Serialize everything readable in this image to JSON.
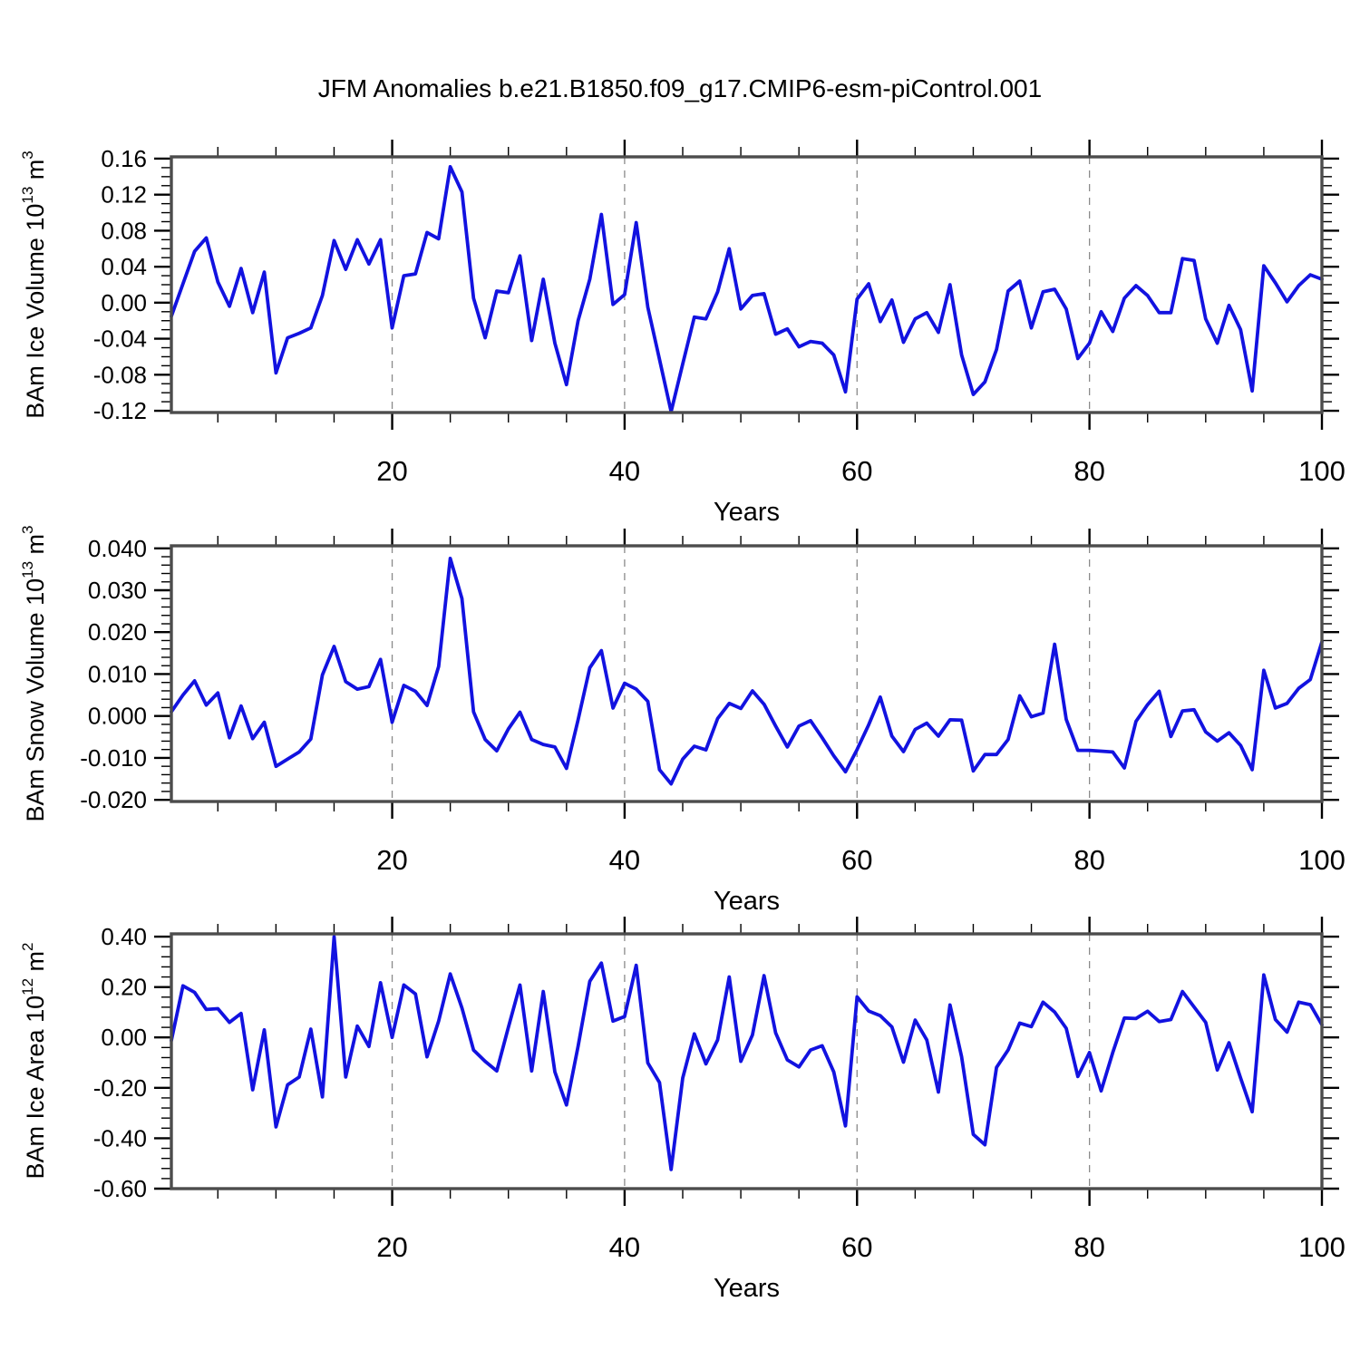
{
  "title": "JFM Anomalies b.e21.B1850.f09_g17.CMIP6-esm-piControl.001",
  "line_color": "#1212E0",
  "chart_data": [
    {
      "type": "line",
      "name": "BAm Ice Volume anomaly",
      "ylabel": {
        "prefix": "BAm Ice Volume 10",
        "exp": "13",
        "unit": " m",
        "unit_exp": "3"
      },
      "xlabel": "Years",
      "x": {
        "start": 1,
        "end": 100,
        "step": 1,
        "minor_tick_step": 5
      },
      "xticks": [
        20,
        40,
        60,
        80,
        100
      ],
      "xtick_labels": [
        "20",
        "40",
        "60",
        "80",
        "100"
      ],
      "grid_x": [
        20,
        40,
        60,
        80
      ],
      "ylim": [
        -0.122,
        0.162
      ],
      "yticks": [
        0.16,
        0.12,
        0.08,
        0.04,
        0.0,
        -0.04,
        -0.08,
        -0.12
      ],
      "ytick_labels": [
        "0.16",
        "0.12",
        "0.08",
        "0.04",
        "0.00",
        "-0.04",
        "-0.08",
        "-0.12"
      ],
      "y_minor_step": 0.01,
      "values": [
        -0.015,
        0.021,
        0.057,
        0.072,
        0.023,
        -0.004,
        0.038,
        -0.011,
        0.034,
        -0.078,
        -0.039,
        -0.034,
        -0.028,
        0.008,
        0.069,
        0.037,
        0.07,
        0.043,
        0.07,
        -0.028,
        0.03,
        0.032,
        0.078,
        0.071,
        0.151,
        0.123,
        0.005,
        -0.039,
        0.013,
        0.011,
        0.052,
        -0.042,
        0.026,
        -0.045,
        -0.091,
        -0.02,
        0.026,
        0.098,
        -0.002,
        0.009,
        0.089,
        -0.005,
        -0.063,
        -0.121,
        -0.068,
        -0.016,
        -0.018,
        0.012,
        0.06,
        -0.007,
        0.008,
        0.01,
        -0.035,
        -0.029,
        -0.049,
        -0.043,
        -0.045,
        -0.058,
        -0.099,
        0.004,
        0.021,
        -0.021,
        0.003,
        -0.044,
        -0.018,
        -0.011,
        -0.033,
        0.02,
        -0.058,
        -0.102,
        -0.088,
        -0.052,
        0.013,
        0.024,
        -0.028,
        0.012,
        0.015,
        -0.007,
        -0.062,
        -0.045,
        -0.01,
        -0.032,
        0.005,
        0.019,
        0.008,
        -0.011,
        -0.011,
        0.049,
        0.047,
        -0.018,
        -0.045,
        -0.003,
        -0.03,
        -0.098,
        0.041,
        0.022,
        0.001,
        0.019,
        0.031,
        0.026
      ]
    },
    {
      "type": "line",
      "name": "BAm Snow Volume anomaly",
      "ylabel": {
        "prefix": "BAm Snow Volume 10",
        "exp": "13",
        "unit": " m",
        "unit_exp": "3"
      },
      "xlabel": "Years",
      "x": {
        "start": 1,
        "end": 100,
        "step": 1,
        "minor_tick_step": 5
      },
      "xticks": [
        20,
        40,
        60,
        80,
        100
      ],
      "xtick_labels": [
        "20",
        "40",
        "60",
        "80",
        "100"
      ],
      "grid_x": [
        20,
        40,
        60,
        80
      ],
      "ylim": [
        -0.0204,
        0.0406
      ],
      "yticks": [
        0.04,
        0.03,
        0.02,
        0.01,
        0.0,
        -0.01,
        -0.02
      ],
      "ytick_labels": [
        "0.040",
        "0.030",
        "0.020",
        "0.010",
        "0.000",
        "-0.010",
        "-0.020"
      ],
      "y_minor_step": 0.002,
      "values": [
        0.001,
        0.005,
        0.0084,
        0.0026,
        0.0055,
        -0.0052,
        0.0024,
        -0.0054,
        -0.0015,
        -0.012,
        -0.0103,
        -0.0086,
        -0.0055,
        0.0098,
        0.0166,
        0.0082,
        0.0064,
        0.007,
        0.0135,
        -0.0015,
        0.0073,
        0.0059,
        0.0025,
        0.0118,
        0.0376,
        0.028,
        0.001,
        -0.0056,
        -0.0083,
        -0.0031,
        0.0009,
        -0.0056,
        -0.0068,
        -0.0074,
        -0.0125,
        -0.0009,
        0.0115,
        0.0156,
        0.0019,
        0.0078,
        0.0064,
        0.0035,
        -0.0128,
        -0.0162,
        -0.0103,
        -0.0072,
        -0.0081,
        -0.0006,
        0.003,
        0.0018,
        0.006,
        0.0028,
        -0.0024,
        -0.0074,
        -0.0024,
        -0.0011,
        -0.0052,
        -0.0095,
        -0.0133,
        -0.008,
        -0.0021,
        0.0045,
        -0.0048,
        -0.0085,
        -0.0032,
        -0.0017,
        -0.0048,
        -0.0009,
        -0.001,
        -0.0131,
        -0.0092,
        -0.0092,
        -0.0056,
        0.0048,
        -0.0002,
        0.0007,
        0.0171,
        -0.0008,
        -0.0082,
        -0.0082,
        -0.0084,
        -0.0086,
        -0.0124,
        -0.0013,
        0.0027,
        0.0059,
        -0.0049,
        0.0012,
        0.0015,
        -0.0038,
        -0.006,
        -0.004,
        -0.007,
        -0.0128,
        0.0109,
        0.0019,
        0.003,
        0.0066,
        0.0087,
        0.0177
      ]
    },
    {
      "type": "line",
      "name": "BAm Ice Area anomaly",
      "ylabel": {
        "prefix": "BAm Ice Area 10",
        "exp": "12",
        "unit": " m",
        "unit_exp": "2"
      },
      "xlabel": "Years",
      "x": {
        "start": 1,
        "end": 100,
        "step": 1,
        "minor_tick_step": 5
      },
      "xticks": [
        20,
        40,
        60,
        80,
        100
      ],
      "xtick_labels": [
        "20",
        "40",
        "60",
        "80",
        "100"
      ],
      "grid_x": [
        20,
        40,
        60,
        80
      ],
      "ylim": [
        -0.6,
        0.411
      ],
      "yticks": [
        0.4,
        0.2,
        0.0,
        -0.2,
        -0.4,
        -0.6
      ],
      "ytick_labels": [
        "0.40",
        "0.20",
        "0.00",
        "-0.20",
        "-0.40",
        "-0.60"
      ],
      "y_minor_step": 0.04,
      "values": [
        -0.012,
        0.205,
        0.179,
        0.111,
        0.114,
        0.06,
        0.095,
        -0.208,
        0.03,
        -0.355,
        -0.188,
        -0.157,
        0.033,
        -0.236,
        0.4,
        -0.157,
        0.045,
        -0.036,
        0.217,
        0.0,
        0.208,
        0.173,
        -0.077,
        0.065,
        0.252,
        0.117,
        -0.05,
        -0.095,
        -0.133,
        0.04,
        0.208,
        -0.133,
        0.182,
        -0.137,
        -0.268,
        -0.035,
        0.223,
        0.295,
        0.065,
        0.083,
        0.286,
        -0.101,
        -0.179,
        -0.524,
        -0.161,
        0.014,
        -0.105,
        -0.01,
        0.24,
        -0.095,
        0.01,
        0.245,
        0.018,
        -0.089,
        -0.117,
        -0.05,
        -0.033,
        -0.137,
        -0.351,
        0.161,
        0.105,
        0.086,
        0.042,
        -0.098,
        0.069,
        -0.01,
        -0.217,
        0.129,
        -0.077,
        -0.385,
        -0.426,
        -0.119,
        -0.05,
        0.057,
        0.043,
        0.14,
        0.101,
        0.036,
        -0.155,
        -0.06,
        -0.212,
        -0.06,
        0.077,
        0.075,
        0.104,
        0.063,
        0.071,
        0.182,
        0.121,
        0.06,
        -0.129,
        -0.021,
        -0.161,
        -0.295,
        0.248,
        0.071,
        0.021,
        0.14,
        0.13,
        0.05
      ]
    }
  ]
}
